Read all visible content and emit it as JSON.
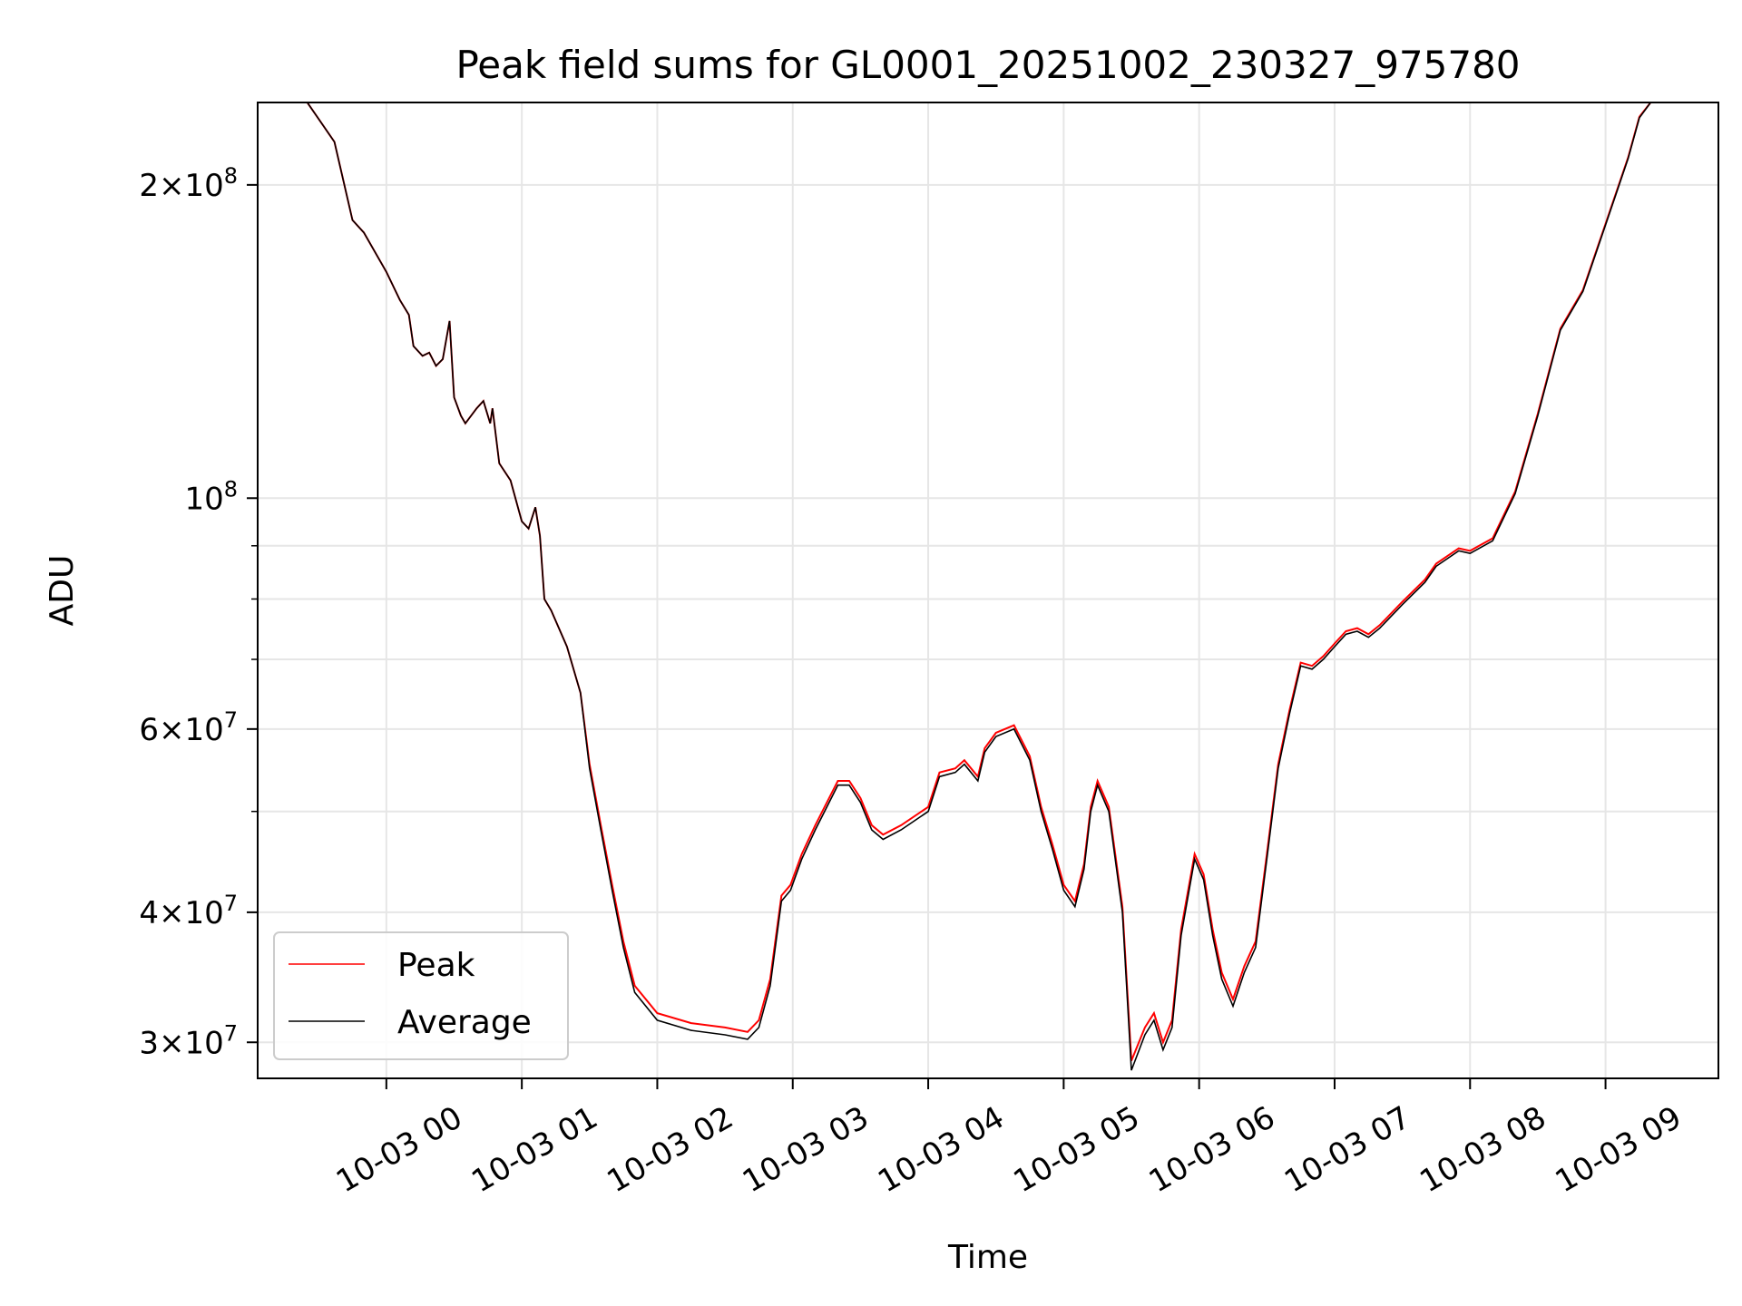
{
  "chart_data": {
    "type": "line",
    "title": "Peak field sums for GL0001_20251002_230327_975780",
    "xlabel": "Time",
    "ylabel": "ADU",
    "y_scale": "log",
    "x_range": [
      "10-02 23:03",
      "10-03 09:50"
    ],
    "ylim": [
      27700000,
      240000000
    ],
    "x_ticks": [
      "10-03 00",
      "10-03 01",
      "10-03 02",
      "10-03 03",
      "10-03 04",
      "10-03 05",
      "10-03 06",
      "10-03 07",
      "10-03 08",
      "10-03 09"
    ],
    "y_major_ticks": [
      {
        "value": 30000000,
        "mantissa": "3",
        "exp": "7"
      },
      {
        "value": 40000000,
        "mantissa": "4",
        "exp": "7"
      },
      {
        "value": 60000000,
        "mantissa": "6",
        "exp": "7"
      },
      {
        "value": 100000000,
        "mantissa": "",
        "exp": "8"
      },
      {
        "value": 200000000,
        "mantissa": "2",
        "exp": "8"
      }
    ],
    "y_minor_ticks": [
      50000000,
      70000000,
      80000000,
      90000000
    ],
    "grid": true,
    "legend_position": "lower-left",
    "series": [
      {
        "name": "Peak",
        "color": "#ff0000"
      },
      {
        "name": "Average",
        "color": "#000000"
      }
    ],
    "x": [
      "10-02 23:03",
      "10-02 23:25",
      "10-02 23:37",
      "10-02 23:45",
      "10-02 23:50",
      "10-03 00:00",
      "10-03 00:06",
      "10-03 00:10",
      "10-03 00:12",
      "10-03 00:16",
      "10-03 00:19",
      "10-03 00:22",
      "10-03 00:25",
      "10-03 00:28",
      "10-03 00:30",
      "10-03 00:33",
      "10-03 00:35",
      "10-03 00:40",
      "10-03 00:43",
      "10-03 00:46",
      "10-03 00:47",
      "10-03 00:50",
      "10-03 00:55",
      "10-03 01:00",
      "10-03 01:03",
      "10-03 01:06",
      "10-03 01:08",
      "10-03 01:10",
      "10-03 01:13",
      "10-03 01:20",
      "10-03 01:26",
      "10-03 01:30",
      "10-03 01:35",
      "10-03 01:40",
      "10-03 01:45",
      "10-03 01:50",
      "10-03 02:00",
      "10-03 02:15",
      "10-03 02:30",
      "10-03 02:40",
      "10-03 02:45",
      "10-03 02:50",
      "10-03 02:55",
      "10-03 02:59",
      "10-03 03:04",
      "10-03 03:10",
      "10-03 03:20",
      "10-03 03:25",
      "10-03 03:30",
      "10-03 03:35",
      "10-03 03:40",
      "10-03 03:48",
      "10-03 04:00",
      "10-03 04:05",
      "10-03 04:12",
      "10-03 04:16",
      "10-03 04:22",
      "10-03 04:25",
      "10-03 04:30",
      "10-03 04:38",
      "10-03 04:45",
      "10-03 04:50",
      "10-03 04:55",
      "10-03 05:00",
      "10-03 05:05",
      "10-03 05:09",
      "10-03 05:12",
      "10-03 05:15",
      "10-03 05:20",
      "10-03 05:26",
      "10-03 05:30",
      "10-03 05:36",
      "10-03 05:40",
      "10-03 05:44",
      "10-03 05:48",
      "10-03 05:52",
      "10-03 05:58",
      "10-03 06:02",
      "10-03 06:06",
      "10-03 06:10",
      "10-03 06:15",
      "10-03 06:20",
      "10-03 06:25",
      "10-03 06:30",
      "10-03 06:35",
      "10-03 06:40",
      "10-03 06:45",
      "10-03 06:50",
      "10-03 06:55",
      "10-03 07:00",
      "10-03 07:05",
      "10-03 07:10",
      "10-03 07:15",
      "10-03 07:20",
      "10-03 07:30",
      "10-03 07:40",
      "10-03 07:45",
      "10-03 07:55",
      "10-03 08:00",
      "10-03 08:10",
      "10-03 08:20",
      "10-03 08:30",
      "10-03 08:40",
      "10-03 08:50",
      "10-03 09:00",
      "10-03 09:10",
      "10-03 09:15",
      "10-03 09:20",
      "10-03 09:50"
    ],
    "average": [
      240000000,
      240000000,
      220000000,
      185000000,
      180000000,
      165000000,
      155000000,
      150000000,
      140000000,
      137000000,
      138000000,
      134000000,
      136000000,
      148000000,
      125000000,
      120000000,
      118000000,
      122000000,
      124000000,
      118000000,
      122000000,
      108000000,
      104000000,
      95000000,
      93500000,
      98000000,
      92000000,
      80000000,
      78000000,
      72000000,
      65000000,
      55000000,
      48000000,
      42000000,
      37000000,
      33500000,
      31500000,
      30800000,
      30500000,
      30200000,
      31000000,
      34000000,
      41000000,
      42000000,
      45000000,
      48000000,
      53000000,
      53000000,
      51000000,
      48000000,
      47000000,
      48000000,
      50000000,
      54000000,
      54500000,
      55500000,
      53500000,
      57000000,
      59000000,
      60000000,
      56000000,
      50000000,
      46000000,
      42000000,
      40500000,
      44000000,
      50000000,
      53000000,
      50000000,
      40000000,
      28200000,
      30500000,
      31500000,
      29500000,
      31000000,
      38000000,
      45000000,
      43000000,
      38000000,
      34500000,
      32500000,
      35000000,
      37000000,
      45000000,
      55000000,
      62000000,
      69000000,
      68500000,
      70000000,
      72000000,
      74000000,
      74500000,
      73500000,
      75000000,
      79000000,
      83000000,
      86000000,
      89000000,
      88500000,
      91000000,
      101000000,
      120000000,
      145000000,
      158000000,
      183000000,
      212000000,
      232000000,
      240000000,
      240000000
    ],
    "peak": [
      240000000,
      240000000,
      220000000,
      185000000,
      180000000,
      165000000,
      155000000,
      150000000,
      140000000,
      137000000,
      138000000,
      134000000,
      136000000,
      148000000,
      125000000,
      120000000,
      118000000,
      122000000,
      124000000,
      118000000,
      122000000,
      108000000,
      104000000,
      95000000,
      93500000,
      98000000,
      92000000,
      80000000,
      78000000,
      72000000,
      65000000,
      55500000,
      48500000,
      42500000,
      37500000,
      34000000,
      32000000,
      31300000,
      31000000,
      30700000,
      31500000,
      34500000,
      41500000,
      42500000,
      45500000,
      48500000,
      53500000,
      53500000,
      51500000,
      48500000,
      47500000,
      48500000,
      50500000,
      54500000,
      55000000,
      56000000,
      54000000,
      57500000,
      59500000,
      60500000,
      56500000,
      50500000,
      46500000,
      42500000,
      41000000,
      44500000,
      50500000,
      53500000,
      50500000,
      40500000,
      28800000,
      31000000,
      32000000,
      30000000,
      31500000,
      38500000,
      45500000,
      43500000,
      38500000,
      35000000,
      33000000,
      35500000,
      37500000,
      45500000,
      55500000,
      62500000,
      69500000,
      69000000,
      70500000,
      72500000,
      74500000,
      75000000,
      74000000,
      75500000,
      79500000,
      83500000,
      86500000,
      89500000,
      89000000,
      91500000,
      101500000,
      120500000,
      145500000,
      158500000,
      183500000,
      212500000,
      232500000,
      240000000,
      240000000
    ]
  }
}
